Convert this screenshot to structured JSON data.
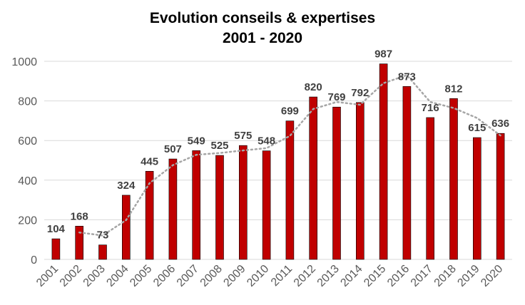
{
  "chart_data": {
    "type": "bar",
    "title_line1": "Evolution conseils & expertises",
    "title_line2": "2001 - 2020",
    "xlabel": "",
    "ylabel": "",
    "ylim": [
      0,
      1000
    ],
    "yticks": [
      "0",
      "200",
      "400",
      "600",
      "800",
      "1000"
    ],
    "grid": true,
    "categories": [
      "2001",
      "2002",
      "2003",
      "2004",
      "2005",
      "2006",
      "2007",
      "2008",
      "2009",
      "2010",
      "2011",
      "2012",
      "2013",
      "2014",
      "2015",
      "2016",
      "2017",
      "2018",
      "2019",
      "2020"
    ],
    "values": [
      104,
      168,
      73,
      324,
      445,
      507,
      549,
      525,
      575,
      548,
      699,
      820,
      769,
      792,
      987,
      873,
      716,
      812,
      615,
      636
    ],
    "data_labels": [
      "104",
      "168",
      "73",
      "324",
      "445",
      "507",
      "549",
      "525",
      "575",
      "548",
      "699",
      "820",
      "769",
      "792",
      "987",
      "873",
      "716",
      "812",
      "615",
      "636"
    ],
    "trendline": {
      "type": "moving-average",
      "period": 2
    },
    "colors": {
      "bar": "#c00000",
      "trend": "#a6a6a6",
      "grid": "#d9d9d9"
    }
  }
}
